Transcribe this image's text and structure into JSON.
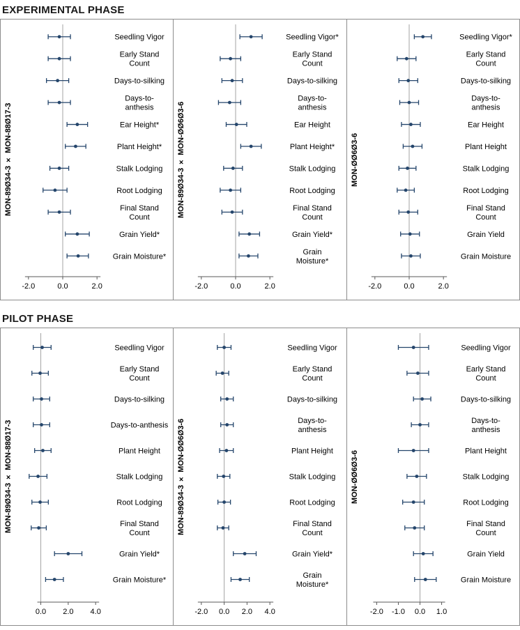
{
  "sections": [
    {
      "title": "EXPERIMENTAL PHASE"
    },
    {
      "title": "PILOT PHASE"
    }
  ],
  "style": {
    "bar_color": "#24456b",
    "zero_line_color": "#a3a3a3",
    "axis_color": "#595959",
    "tick_text_color": "#000000",
    "trait_text_color": "#000000",
    "border_color": "#8c8c8c"
  },
  "chart_data": [
    {
      "type": "forest",
      "phase": "EXPERIMENTAL PHASE",
      "group_label": "MON-89Ø34-3 × MON-88Ø17-3",
      "xlim": [
        -2.4,
        2.4
      ],
      "xticks": [
        -2.0,
        0.0,
        2.0
      ],
      "grid": false,
      "traits": [
        {
          "label": "Seedling Vigor",
          "lo": -0.85,
          "mid": -0.2,
          "hi": 0.45
        },
        {
          "label": "Early Stand\nCount",
          "lo": -0.85,
          "mid": -0.2,
          "hi": 0.45
        },
        {
          "label": "Days-to-silking",
          "lo": -0.95,
          "mid": -0.3,
          "hi": 0.35
        },
        {
          "label": "Days-to-\nanthesis",
          "lo": -0.85,
          "mid": -0.2,
          "hi": 0.45
        },
        {
          "label": "Ear Height*",
          "lo": 0.25,
          "mid": 0.85,
          "hi": 1.45
        },
        {
          "label": "Plant Height*",
          "lo": 0.15,
          "mid": 0.75,
          "hi": 1.35
        },
        {
          "label": "Stalk Lodging",
          "lo": -0.75,
          "mid": -0.2,
          "hi": 0.35
        },
        {
          "label": "Root Lodging",
          "lo": -1.15,
          "mid": -0.45,
          "hi": 0.25
        },
        {
          "label": "Final Stand\nCount",
          "lo": -0.85,
          "mid": -0.2,
          "hi": 0.45
        },
        {
          "label": "Grain Yield*",
          "lo": 0.15,
          "mid": 0.85,
          "hi": 1.55
        },
        {
          "label": "Grain Moisture*",
          "lo": 0.25,
          "mid": 0.9,
          "hi": 1.5
        }
      ]
    },
    {
      "type": "forest",
      "phase": "EXPERIMENTAL PHASE",
      "group_label": "MON-89Ø34-3 × MON-ØØ6Ø3-6",
      "xlim": [
        -2.4,
        2.4
      ],
      "xticks": [
        -2.0,
        0.0,
        2.0
      ],
      "grid": false,
      "traits": [
        {
          "label": "Seedling Vigor*",
          "lo": 0.25,
          "mid": 0.9,
          "hi": 1.55
        },
        {
          "label": "Early Stand\nCount",
          "lo": -0.9,
          "mid": -0.3,
          "hi": 0.3
        },
        {
          "label": "Days-to-silking",
          "lo": -0.8,
          "mid": -0.2,
          "hi": 0.4
        },
        {
          "label": "Days-to-\nanthesis",
          "lo": -1.0,
          "mid": -0.35,
          "hi": 0.3
        },
        {
          "label": "Ear Height",
          "lo": -0.55,
          "mid": 0.05,
          "hi": 0.65
        },
        {
          "label": "Plant Height*",
          "lo": 0.3,
          "mid": 0.9,
          "hi": 1.5
        },
        {
          "label": "Stalk Lodging",
          "lo": -0.7,
          "mid": -0.15,
          "hi": 0.4
        },
        {
          "label": "Root Lodging",
          "lo": -0.9,
          "mid": -0.3,
          "hi": 0.3
        },
        {
          "label": "Final Stand\nCount",
          "lo": -0.8,
          "mid": -0.2,
          "hi": 0.4
        },
        {
          "label": "Grain Yield*",
          "lo": 0.2,
          "mid": 0.8,
          "hi": 1.4
        },
        {
          "label": "Grain\nMoisture*",
          "lo": 0.2,
          "mid": 0.75,
          "hi": 1.3
        }
      ]
    },
    {
      "type": "forest",
      "phase": "EXPERIMENTAL PHASE",
      "group_label": "MON-ØØ6Ø3-6",
      "xlim": [
        -2.4,
        2.4
      ],
      "xticks": [
        -2.0,
        0.0,
        2.0
      ],
      "grid": false,
      "traits": [
        {
          "label": "Seedling Vigor*",
          "lo": 0.3,
          "mid": 0.8,
          "hi": 1.3
        },
        {
          "label": "Early Stand\nCount",
          "lo": -0.7,
          "mid": -0.15,
          "hi": 0.4
        },
        {
          "label": "Days-to-silking",
          "lo": -0.6,
          "mid": -0.05,
          "hi": 0.5
        },
        {
          "label": "Days-to-\nanthesis",
          "lo": -0.55,
          "mid": 0.0,
          "hi": 0.55
        },
        {
          "label": "Ear Height",
          "lo": -0.45,
          "mid": 0.1,
          "hi": 0.65
        },
        {
          "label": "Plant Height",
          "lo": -0.35,
          "mid": 0.2,
          "hi": 0.75
        },
        {
          "label": "Stalk Lodging",
          "lo": -0.6,
          "mid": -0.1,
          "hi": 0.4
        },
        {
          "label": "Root Lodging",
          "lo": -0.7,
          "mid": -0.2,
          "hi": 0.3
        },
        {
          "label": "Final Stand\nCount",
          "lo": -0.6,
          "mid": -0.05,
          "hi": 0.5
        },
        {
          "label": "Grain Yield",
          "lo": -0.5,
          "mid": 0.05,
          "hi": 0.6
        },
        {
          "label": "Grain Moisture",
          "lo": -0.45,
          "mid": 0.1,
          "hi": 0.65
        }
      ]
    },
    {
      "type": "forest",
      "phase": "PILOT PHASE",
      "group_label": "MON-89Ø34-3 × MON-88Ø17-3",
      "xlim": [
        -1.4,
        4.6
      ],
      "xticks": [
        0.0,
        2.0,
        4.0
      ],
      "grid": false,
      "traits": [
        {
          "label": "Seedling Vigor",
          "lo": -0.55,
          "mid": 0.1,
          "hi": 0.75
        },
        {
          "label": "Early Stand\nCount",
          "lo": -0.65,
          "mid": -0.05,
          "hi": 0.55
        },
        {
          "label": "Days-to-silking",
          "lo": -0.55,
          "mid": 0.05,
          "hi": 0.65
        },
        {
          "label": "Days-to-anthesis",
          "lo": -0.55,
          "mid": 0.05,
          "hi": 0.65
        },
        {
          "label": "Plant Height",
          "lo": -0.45,
          "mid": 0.15,
          "hi": 0.75
        },
        {
          "label": "Stalk Lodging",
          "lo": -0.85,
          "mid": -0.2,
          "hi": 0.45
        },
        {
          "label": "Root Lodging",
          "lo": -0.65,
          "mid": -0.05,
          "hi": 0.55
        },
        {
          "label": "Final Stand\nCount",
          "lo": -0.7,
          "mid": -0.15,
          "hi": 0.4
        },
        {
          "label": "Grain Yield*",
          "lo": 1.0,
          "mid": 2.0,
          "hi": 3.0
        },
        {
          "label": "Grain Moisture*",
          "lo": 0.35,
          "mid": 1.0,
          "hi": 1.65
        }
      ]
    },
    {
      "type": "forest",
      "phase": "PILOT PHASE",
      "group_label": "MON-89Ø34-3 × MON-ØØ6Ø3-6",
      "xlim": [
        -2.6,
        4.6
      ],
      "xticks": [
        -2.0,
        0.0,
        2.0,
        4.0
      ],
      "grid": false,
      "traits": [
        {
          "label": "Seedling Vigor",
          "lo": -0.6,
          "mid": 0.0,
          "hi": 0.6
        },
        {
          "label": "Early Stand\nCount",
          "lo": -0.7,
          "mid": -0.15,
          "hi": 0.4
        },
        {
          "label": "Days-to-silking",
          "lo": -0.3,
          "mid": 0.25,
          "hi": 0.8
        },
        {
          "label": "Days-to-\nanthesis",
          "lo": -0.3,
          "mid": 0.25,
          "hi": 0.8
        },
        {
          "label": "Plant Height",
          "lo": -0.4,
          "mid": 0.2,
          "hi": 0.8
        },
        {
          "label": "Stalk Lodging",
          "lo": -0.6,
          "mid": -0.05,
          "hi": 0.5
        },
        {
          "label": "Root Lodging",
          "lo": -0.55,
          "mid": 0.0,
          "hi": 0.55
        },
        {
          "label": "Final Stand\nCount",
          "lo": -0.6,
          "mid": -0.1,
          "hi": 0.4
        },
        {
          "label": "Grain Yield*",
          "lo": 0.8,
          "mid": 1.8,
          "hi": 2.8
        },
        {
          "label": "Grain\nMoisture*",
          "lo": 0.6,
          "mid": 1.4,
          "hi": 2.2
        }
      ]
    },
    {
      "type": "forest",
      "phase": "PILOT PHASE",
      "group_label": "MON-ØØ6Ø3-6",
      "xlim": [
        -2.4,
        1.4
      ],
      "xticks": [
        -2.0,
        -1.0,
        0.0,
        1.0
      ],
      "grid": false,
      "traits": [
        {
          "label": "Seedling Vigor",
          "lo": -1.0,
          "mid": -0.3,
          "hi": 0.4
        },
        {
          "label": "Early Stand\nCount",
          "lo": -0.6,
          "mid": -0.1,
          "hi": 0.4
        },
        {
          "label": "Days-to-silking",
          "lo": -0.3,
          "mid": 0.1,
          "hi": 0.5
        },
        {
          "label": "Days-to-\nanthesis",
          "lo": -0.4,
          "mid": 0.0,
          "hi": 0.4
        },
        {
          "label": "Plant Height",
          "lo": -1.0,
          "mid": -0.3,
          "hi": 0.4
        },
        {
          "label": "Stalk Lodging",
          "lo": -0.6,
          "mid": -0.15,
          "hi": 0.3
        },
        {
          "label": "Root Lodging",
          "lo": -0.8,
          "mid": -0.3,
          "hi": 0.2
        },
        {
          "label": "Final Stand\nCount",
          "lo": -0.7,
          "mid": -0.25,
          "hi": 0.2
        },
        {
          "label": "Grain Yield",
          "lo": -0.3,
          "mid": 0.15,
          "hi": 0.6
        },
        {
          "label": "Grain Moisture",
          "lo": -0.25,
          "mid": 0.25,
          "hi": 0.75
        }
      ]
    }
  ]
}
